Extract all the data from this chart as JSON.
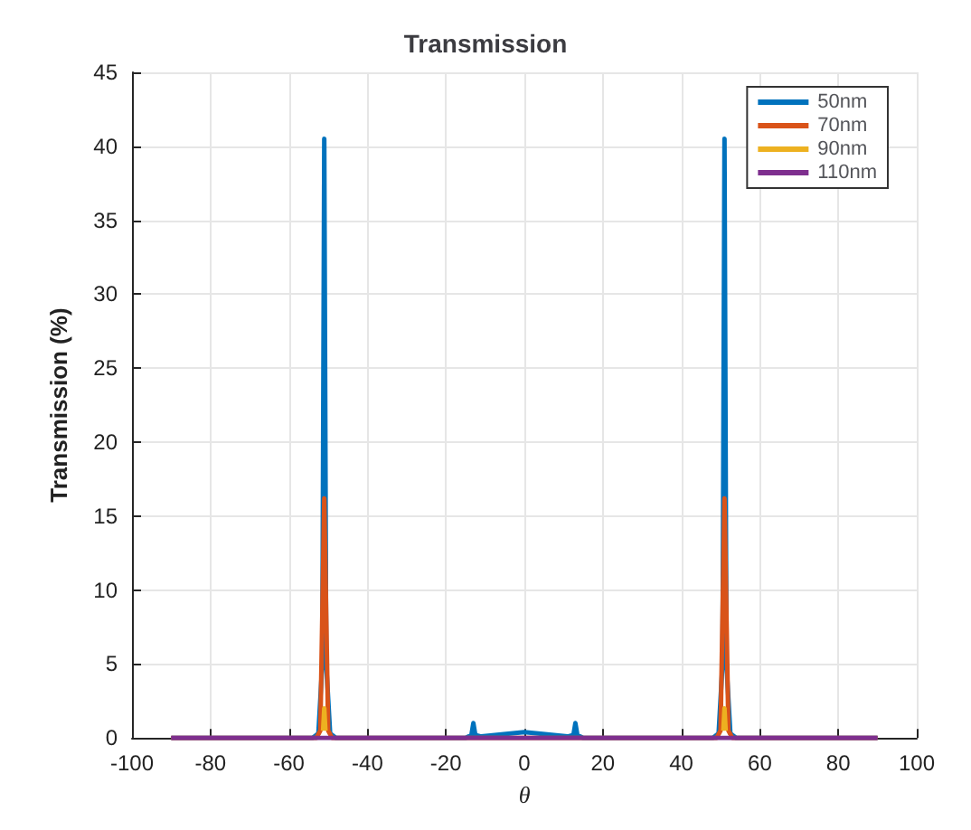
{
  "chart_data": {
    "type": "line",
    "title": "Transmission",
    "xlabel": "θ",
    "ylabel": "Transmission (%)",
    "xlim": [
      -100,
      100
    ],
    "xticks": [
      -100,
      -80,
      -60,
      -40,
      -20,
      0,
      20,
      40,
      60,
      80,
      100
    ],
    "ylim": [
      0,
      45
    ],
    "yticks": [
      0,
      5,
      10,
      15,
      20,
      25,
      30,
      35,
      40,
      45
    ],
    "grid": true,
    "legend": "top right",
    "marker": "none",
    "line_style": "solid",
    "series": [
      {
        "name": "50nm",
        "color": "#0072bd",
        "x": [
          -90,
          -54,
          -52.5,
          -51.5,
          -51,
          -50.5,
          -49.5,
          -48,
          -15,
          -13.5,
          -13,
          -12.5,
          -11,
          0,
          11,
          12.5,
          13,
          13.5,
          15,
          48,
          49.5,
          50.5,
          51,
          51.5,
          52.5,
          54,
          90
        ],
        "values": [
          0,
          0,
          0.3,
          5,
          40.5,
          5,
          0.3,
          0,
          0,
          0.2,
          1,
          0.2,
          0.1,
          0.4,
          0.1,
          0.2,
          1,
          0.2,
          0,
          0,
          0.3,
          5,
          40.5,
          5,
          0.3,
          0,
          0
        ]
      },
      {
        "name": "70nm",
        "color": "#d95319",
        "x": [
          -90,
          -53,
          -52,
          -51,
          -50,
          -49,
          49,
          50,
          51,
          52,
          53,
          90
        ],
        "values": [
          0,
          0,
          0.5,
          16.2,
          0.5,
          0,
          0,
          0.5,
          16.2,
          0.5,
          0,
          0
        ]
      },
      {
        "name": "90nm",
        "color": "#edb120",
        "x": [
          -51.3,
          -51,
          -50.7,
          0,
          50.7,
          51,
          51.3
        ],
        "values": [
          0.5,
          2,
          0.5,
          null,
          0.5,
          2,
          0.5
        ]
      },
      {
        "name": "110nm",
        "color": "#7e2f8e",
        "x": [
          -90,
          90
        ],
        "values": [
          0,
          0
        ]
      }
    ]
  }
}
